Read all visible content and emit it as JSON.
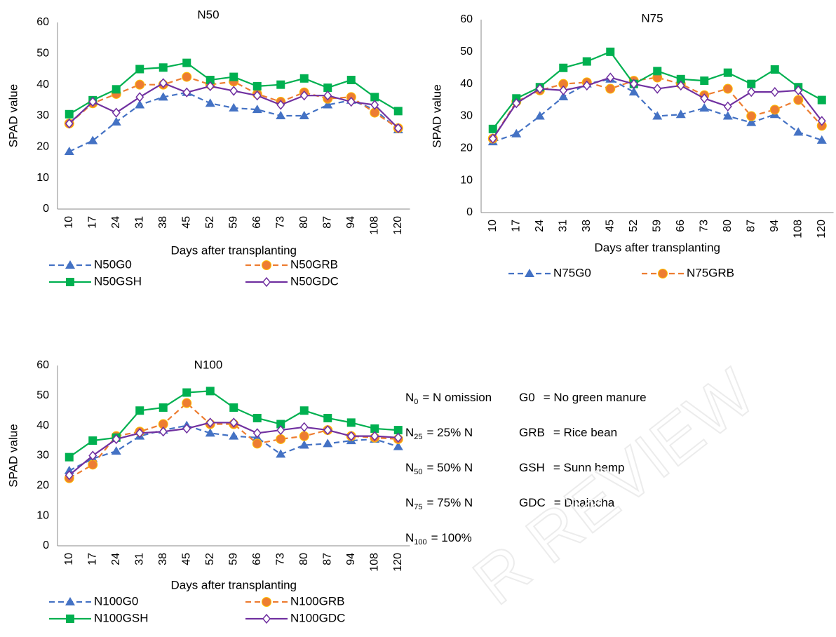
{
  "chart_data": [
    {
      "type": "line",
      "title": "N50",
      "y_label": "SPAD value",
      "x_label": "Days after transplanting",
      "categories": [
        "10",
        "17",
        "24",
        "31",
        "38",
        "45",
        "52",
        "59",
        "66",
        "73",
        "80",
        "87",
        "94",
        "108",
        "120"
      ],
      "ylim": [
        0,
        60
      ],
      "yticks": [
        0,
        10,
        20,
        30,
        40,
        50,
        60
      ],
      "series": [
        {
          "name": "N50G0",
          "color": "#4472c4",
          "dash": true,
          "marker": "triangle",
          "values": [
            18.5,
            22,
            28,
            33.5,
            36,
            37.5,
            34,
            32.5,
            32,
            30,
            30,
            33.5,
            35,
            32,
            25.5
          ]
        },
        {
          "name": "N50GRB",
          "color": "#ed7d31",
          "dash": true,
          "marker": "circle",
          "values": [
            27.5,
            34,
            37,
            40,
            40,
            42.5,
            40,
            41,
            37,
            34.5,
            37.5,
            35.5,
            36,
            31,
            26
          ]
        },
        {
          "name": "N50GSH",
          "color": "#00b050",
          "dash": false,
          "marker": "square",
          "values": [
            30.5,
            35,
            38.5,
            45,
            45.5,
            47,
            41.5,
            42.5,
            39.5,
            40,
            42,
            39,
            41.5,
            36,
            31.5
          ]
        },
        {
          "name": "N50GDC",
          "color": "#7030a0",
          "dash": false,
          "marker": "diamond-open",
          "values": [
            27.5,
            34.5,
            31,
            36,
            40.5,
            37.5,
            39.5,
            38,
            36.5,
            33.5,
            36.5,
            36.5,
            34.5,
            33.5,
            26
          ]
        }
      ]
    },
    {
      "type": "line",
      "title": "N75",
      "y_label": "SPAD value",
      "x_label": "Days after transplanting",
      "categories": [
        "10",
        "17",
        "24",
        "31",
        "38",
        "45",
        "52",
        "59",
        "66",
        "73",
        "80",
        "87",
        "94",
        "108",
        "120"
      ],
      "ylim": [
        0,
        60
      ],
      "yticks": [
        0,
        10,
        20,
        30,
        40,
        50,
        60
      ],
      "series": [
        {
          "name": "N75G0",
          "color": "#4472c4",
          "dash": true,
          "marker": "triangle",
          "values": [
            22,
            24.5,
            30,
            36,
            40,
            41.5,
            37.5,
            30,
            30.5,
            32.5,
            30,
            28,
            30.5,
            25,
            22.5
          ]
        },
        {
          "name": "N75GRB",
          "color": "#ed7d31",
          "dash": true,
          "marker": "circle",
          "values": [
            23,
            34.5,
            38,
            40,
            40.5,
            38.5,
            41,
            42,
            40,
            36.5,
            38.5,
            30,
            32,
            35,
            27
          ]
        },
        {
          "color": "#00b050",
          "dash": false,
          "marker": "square",
          "values": [
            26,
            35.5,
            39,
            45,
            47,
            50,
            40,
            44,
            41.5,
            41,
            43.5,
            40,
            44.5,
            39,
            35
          ]
        },
        {
          "color": "#7030a0",
          "dash": false,
          "marker": "diamond-open",
          "values": [
            23,
            34,
            38.5,
            38,
            39.5,
            42,
            40,
            38.5,
            39.5,
            35.5,
            33,
            37.5,
            37.5,
            38,
            28.5
          ]
        }
      ]
    },
    {
      "type": "line",
      "title": "N100",
      "y_label": "SPAD value",
      "x_label": "Days after transplanting",
      "categories": [
        "10",
        "17",
        "24",
        "31",
        "38",
        "45",
        "52",
        "59",
        "66",
        "73",
        "80",
        "87",
        "94",
        "108",
        "120"
      ],
      "ylim": [
        0,
        60
      ],
      "yticks": [
        0,
        10,
        20,
        30,
        40,
        50,
        60
      ],
      "series": [
        {
          "name": "N100G0",
          "color": "#4472c4",
          "dash": true,
          "marker": "triangle",
          "values": [
            25,
            29,
            31.5,
            36.5,
            38.5,
            40,
            37.5,
            36.5,
            36,
            30.5,
            33.5,
            34,
            35,
            35.5,
            33
          ]
        },
        {
          "name": "N100GRB",
          "color": "#ed7d31",
          "dash": true,
          "marker": "circle",
          "values": [
            22.5,
            27,
            36.5,
            38,
            40.5,
            47.5,
            40.5,
            40.5,
            34,
            35.5,
            36.5,
            38.5,
            36.5,
            36,
            35.5
          ]
        },
        {
          "name": "N100GSH",
          "color": "#00b050",
          "dash": false,
          "marker": "square",
          "values": [
            29.5,
            35,
            36,
            45,
            46,
            51,
            51.5,
            46,
            42.5,
            40.5,
            45,
            42.5,
            41,
            39,
            38.5
          ]
        },
        {
          "name": "N100GDC",
          "color": "#7030a0",
          "dash": false,
          "marker": "diamond-open",
          "values": [
            23.5,
            30,
            35.5,
            37.5,
            38,
            39,
            41,
            41,
            37.5,
            38.5,
            39.5,
            38.5,
            36.5,
            36.5,
            36
          ]
        }
      ]
    }
  ],
  "abbreviations": [
    {
      "n": "N",
      "sub": "0",
      "n_def": "= N omission",
      "g": "G0",
      "g_def": "= No green manure"
    },
    {
      "n": "N",
      "sub": "25",
      "n_def": "= 25% N",
      "g": "GRB",
      "g_def": "= Rice bean"
    },
    {
      "n": "N",
      "sub": "50",
      "n_def": "= 50% N",
      "g": "GSH",
      "g_def": "= Sunn hemp"
    },
    {
      "n": "N",
      "sub": "75",
      "n_def": "= 75% N",
      "g": "GDC",
      "g_def": "= Dhaincha"
    },
    {
      "n": "N",
      "sub": "100",
      "n_def": "= 100%"
    }
  ],
  "watermark": "R REVIEW"
}
